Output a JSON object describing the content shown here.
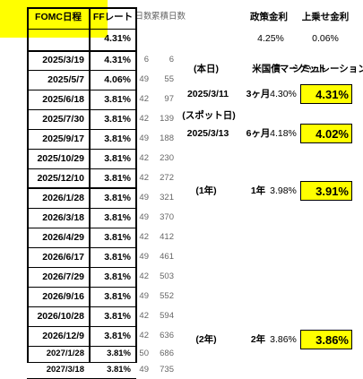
{
  "left_table": {
    "headers": [
      "FOMC日程",
      "FFレート",
      "日数",
      "累積日数"
    ],
    "current_rate": "4.31%",
    "rows": [
      [
        "2025/3/19",
        "4.31%",
        "6",
        "6"
      ],
      [
        "2025/5/7",
        "4.06%",
        "49",
        "55"
      ],
      [
        "2025/6/18",
        "3.81%",
        "42",
        "97"
      ],
      [
        "2025/7/30",
        "3.81%",
        "42",
        "139"
      ],
      [
        "2025/9/17",
        "3.81%",
        "49",
        "188"
      ],
      [
        "2025/10/29",
        "3.81%",
        "42",
        "230"
      ],
      [
        "2025/12/10",
        "3.81%",
        "42",
        "272"
      ],
      [
        "2026/1/28",
        "3.81%",
        "49",
        "321"
      ],
      [
        "2026/3/18",
        "3.81%",
        "49",
        "370"
      ],
      [
        "2026/4/29",
        "3.81%",
        "42",
        "412"
      ],
      [
        "2026/6/17",
        "3.81%",
        "49",
        "461"
      ],
      [
        "2026/7/29",
        "3.81%",
        "42",
        "503"
      ],
      [
        "2026/9/16",
        "3.81%",
        "49",
        "552"
      ],
      [
        "2026/10/28",
        "3.81%",
        "42",
        "594"
      ],
      [
        "2026/12/9",
        "3.81%",
        "42",
        "636"
      ],
      [
        "2027/1/28",
        "3.81%",
        "50",
        "686"
      ],
      [
        "2027/3/18",
        "3.81%",
        "49",
        "735"
      ]
    ]
  },
  "right_panel": {
    "policy_rate_label": "政策金利",
    "spread_label": "上乗せ金利",
    "policy_rate": "4.25%",
    "spread": "0.06%",
    "today_label": "(本日)",
    "today_date": "2025/3/11",
    "spot_label": "(スポット日)",
    "spot_date": "2025/3/13",
    "column_headers": [
      "米国債",
      "マーケット",
      "シミュレーション"
    ],
    "rows": [
      {
        "term": "3ヶ月",
        "market": "4.30%",
        "simulation": "4.31%"
      },
      {
        "term": "6ヶ月",
        "market": "4.18%",
        "simulation": "4.02%"
      },
      {
        "label": "(1年)",
        "term": "1年",
        "market": "3.98%",
        "simulation": "3.91%"
      },
      {
        "label": "(2年)",
        "term": "2年",
        "market": "3.86%",
        "simulation": "3.86%"
      }
    ]
  }
}
